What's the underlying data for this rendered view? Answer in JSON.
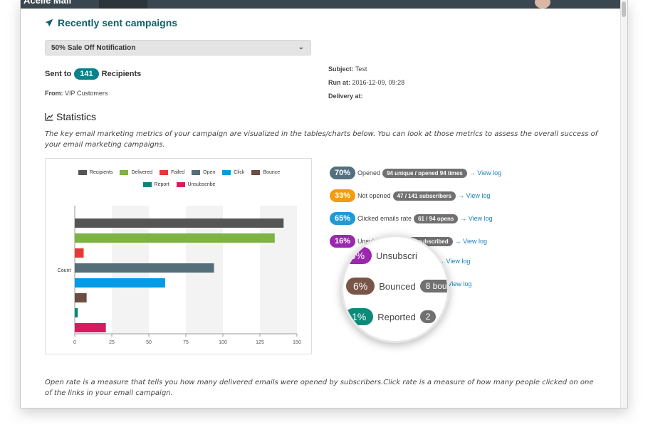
{
  "topbar": {
    "brand": "Acelle Mail"
  },
  "header": {
    "title": "Recently sent campaigns"
  },
  "campaign_select": {
    "value": "50% Sale Off Notification"
  },
  "sent": {
    "prefix": "Sent to",
    "count": "141",
    "suffix": "Recipients"
  },
  "from": {
    "label": "From:",
    "value": "VIP Customers"
  },
  "meta": {
    "subject_label": "Subject:",
    "subject_value": "Test",
    "run_label": "Run at:",
    "run_value": "2016-12-09, 09:28",
    "delivery_label": "Delivery at:",
    "delivery_value": ""
  },
  "statistics": {
    "title": "Statistics",
    "description": "The key email marketing metrics of your campaign are visualized in the tables/charts below. You can look at those metrics to assess the overall success of your email marketing campaigns."
  },
  "metrics": [
    {
      "pct": "70%",
      "label": "Opened",
      "tag": "94 unique / opened 94 times",
      "link": "→ View log",
      "color": "#54707e"
    },
    {
      "pct": "33%",
      "label": "Not opened",
      "tag": "47 / 141 subscribers",
      "link": "→ View log",
      "color": "#f39c12"
    },
    {
      "pct": "65%",
      "label": "Clicked emails rate",
      "tag": "61 / 94 opens",
      "link": "→ View log",
      "color": "#1e9ad6"
    },
    {
      "pct": "16%",
      "label": "Unsubscribed",
      "tag": "21 unsubscribed",
      "link": "→ View log",
      "color": "#9b27af"
    },
    {
      "pct": "",
      "label": "",
      "tag": "",
      "link": "→ View log",
      "color": "#795548"
    },
    {
      "pct": "",
      "label": "",
      "tag": "",
      "link": "→ View log",
      "color": "#0e8a7a"
    }
  ],
  "magnifier": [
    {
      "pct": "16%",
      "label": "Unsubscri",
      "tag": "",
      "color": "#9b27af"
    },
    {
      "pct": "6%",
      "label": "Bounced",
      "tag": "8 bou",
      "color": "#795548"
    },
    {
      "pct": "1%",
      "label": "Reported",
      "tag": "2",
      "color": "#0e8a7a"
    }
  ],
  "chart_data": {
    "type": "bar",
    "orientation": "horizontal",
    "ylabel": "Count",
    "xlim": [
      0,
      150
    ],
    "x_ticks": [
      "0",
      "25",
      "50",
      "75",
      "100",
      "125",
      "150"
    ],
    "legend_position": "top-center",
    "series": [
      {
        "name": "Recipients",
        "value": 141,
        "color": "#555555"
      },
      {
        "name": "Delivered",
        "value": 135,
        "color": "#7cb342"
      },
      {
        "name": "Failed",
        "value": 6,
        "color": "#e53935"
      },
      {
        "name": "Open",
        "value": 94,
        "color": "#546e7a"
      },
      {
        "name": "Click",
        "value": 61,
        "color": "#039be5"
      },
      {
        "name": "Bounce",
        "value": 8,
        "color": "#6d4c41"
      },
      {
        "name": "Report",
        "value": 2,
        "color": "#00897b"
      },
      {
        "name": "Unsubscribe",
        "value": 21,
        "color": "#d81b60"
      }
    ]
  },
  "footer": {
    "note": "Open rate is a measure that tells you how many delivered emails were opened by subscribers.Click rate is a measure of how many people clicked on one of the links in your email campaign."
  }
}
